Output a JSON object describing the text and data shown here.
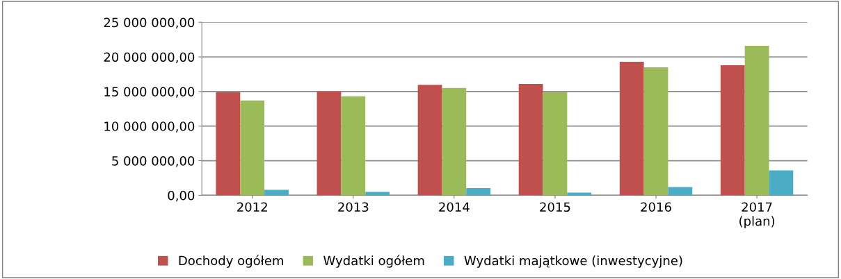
{
  "chart_data": {
    "type": "bar",
    "categories": [
      "2012",
      "2013",
      "2014",
      "2015",
      "2016",
      "2017\n(plan)"
    ],
    "series": [
      {
        "name": "Dochody ogółem",
        "color": "#c0504d",
        "values": [
          14900000,
          15000000,
          15960000,
          16100000,
          19300000,
          18800000
        ]
      },
      {
        "name": "Wydatki ogółem",
        "color": "#9bbb59",
        "values": [
          13700000,
          14300000,
          15500000,
          14900000,
          18500000,
          21600000
        ]
      },
      {
        "name": "Wydatki majątkowe (inwestycyjne)",
        "color": "#4bacc6",
        "values": [
          800000,
          500000,
          1050000,
          400000,
          1200000,
          3600000
        ]
      }
    ],
    "ylim": [
      0,
      25000000
    ],
    "yticks": [
      {
        "value": 0,
        "label": "0,00"
      },
      {
        "value": 5000000,
        "label": "5 000 000,00"
      },
      {
        "value": 10000000,
        "label": "10 000 000,00"
      },
      {
        "value": 15000000,
        "label": "15 000 000,00"
      },
      {
        "value": 20000000,
        "label": "20 000 000,00"
      },
      {
        "value": 25000000,
        "label": "25 000 000,00"
      }
    ],
    "grid": "y",
    "legend": "bottom"
  }
}
